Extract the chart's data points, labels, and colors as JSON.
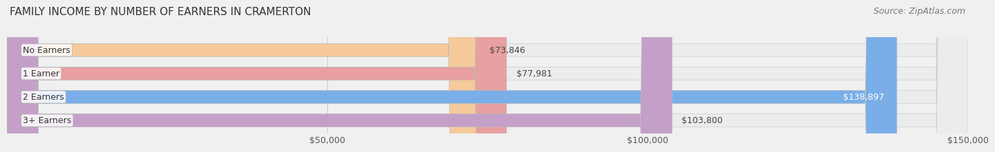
{
  "title": "FAMILY INCOME BY NUMBER OF EARNERS IN CRAMERTON",
  "source": "Source: ZipAtlas.com",
  "categories": [
    "No Earners",
    "1 Earner",
    "2 Earners",
    "3+ Earners"
  ],
  "values": [
    73846,
    77981,
    138897,
    103800
  ],
  "bar_colors": [
    "#f5c99a",
    "#e8a0a0",
    "#7aaee8",
    "#c4a0c8"
  ],
  "bar_edge_colors": [
    "#d4a070",
    "#c07070",
    "#4a80c0",
    "#a070a0"
  ],
  "label_colors": [
    "#555555",
    "#555555",
    "#ffffff",
    "#555555"
  ],
  "value_labels": [
    "$73,846",
    "$77,981",
    "$138,897",
    "$103,800"
  ],
  "xlim_min": 0,
  "xlim_max": 150000,
  "x_ticks": [
    50000,
    100000,
    150000
  ],
  "x_tick_labels": [
    "$50,000",
    "$100,000",
    "$150,000"
  ],
  "bar_height": 0.55,
  "background_color": "#f0f0f0",
  "bar_bg_color": "#e8e8e8",
  "title_fontsize": 11,
  "source_fontsize": 9,
  "label_fontsize": 9,
  "tick_fontsize": 9
}
